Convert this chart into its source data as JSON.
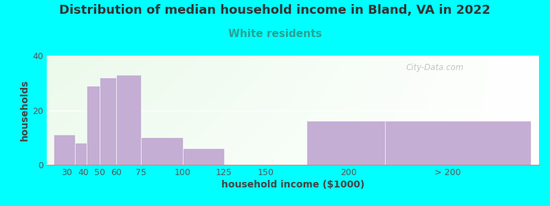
{
  "title": "Distribution of median household income in Bland, VA in 2022",
  "subtitle": "White residents",
  "xlabel": "household income ($1000)",
  "ylabel": "households",
  "bar_color": "#c4aed4",
  "background_color": "#00ffff",
  "categories": [
    "30",
    "40",
    "50",
    "60",
    "75",
    "100",
    "125",
    "150",
    "200",
    "> 200"
  ],
  "left_edges": [
    22,
    35,
    42,
    50,
    60,
    75,
    100,
    125,
    175,
    222
  ],
  "right_edges": [
    35,
    42,
    50,
    60,
    75,
    100,
    125,
    150,
    222,
    310
  ],
  "heights": [
    11,
    8,
    29,
    32,
    33,
    10,
    6,
    0,
    16,
    16
  ],
  "xtick_positions": [
    30,
    40,
    50,
    60,
    75,
    100,
    125,
    150,
    200,
    260
  ],
  "xtick_labels": [
    "30",
    "40",
    "50",
    "60",
    "75",
    "100",
    "125",
    "150",
    "200",
    "> 200"
  ],
  "ylim": [
    0,
    40
  ],
  "xlim": [
    18,
    315
  ],
  "yticks": [
    0,
    20,
    40
  ],
  "watermark": "City-Data.com",
  "title_fontsize": 13,
  "subtitle_fontsize": 11,
  "subtitle_color": "#2aa090",
  "axis_label_fontsize": 10,
  "tick_fontsize": 9,
  "title_color": "#333333"
}
